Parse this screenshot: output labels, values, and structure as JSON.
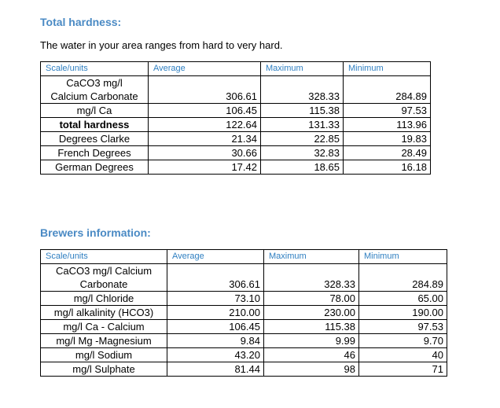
{
  "total_hardness": {
    "title": "Total hardness:",
    "intro": "The water in your area ranges from hard to very hard.",
    "headers": [
      "Scale/units",
      "Average",
      "Maximum",
      "Minimum"
    ],
    "rows": [
      {
        "label": "CaCO3 mg/l\nCalcium Carbonate",
        "avg": "306.61",
        "max": "328.33",
        "min": "284.89",
        "bold": false
      },
      {
        "label": "mg/l Ca",
        "avg": "106.45",
        "max": "115.38",
        "min": "97.53",
        "bold": false
      },
      {
        "label": "total hardness",
        "avg": "122.64",
        "max": "131.33",
        "min": "113.96",
        "bold": true
      },
      {
        "label": "Degrees Clarke",
        "avg": "21.34",
        "max": "22.85",
        "min": "19.83",
        "bold": false
      },
      {
        "label": "French Degrees",
        "avg": "30.66",
        "max": "32.83",
        "min": "28.49",
        "bold": false
      },
      {
        "label": "German Degrees",
        "avg": "17.42",
        "max": "18.65",
        "min": "16.18",
        "bold": false
      }
    ]
  },
  "brewers": {
    "title": "Brewers information:",
    "headers": [
      "Scale/units",
      "Average",
      "Maximum",
      "Minimum"
    ],
    "rows": [
      {
        "label": "CaCO3 mg/l Calcium\nCarbonate",
        "avg": "306.61",
        "max": "328.33",
        "min": "284.89"
      },
      {
        "label": "mg/l Chloride",
        "avg": "73.10",
        "max": "78.00",
        "min": "65.00"
      },
      {
        "label": "mg/l alkalinity (HCO3)",
        "avg": "210.00",
        "max": "230.00",
        "min": "190.00"
      },
      {
        "label": "mg/l Ca - Calcium",
        "avg": "106.45",
        "max": "115.38",
        "min": "97.53"
      },
      {
        "label": "mg/l Mg -Magnesium",
        "avg": "9.84",
        "max": "9.99",
        "min": "9.70"
      },
      {
        "label": "mg/l Sodium",
        "avg": "43.20",
        "max": "46",
        "min": "40"
      },
      {
        "label": "mg/l Sulphate",
        "avg": "81.44",
        "max": "98",
        "min": "71"
      }
    ]
  }
}
